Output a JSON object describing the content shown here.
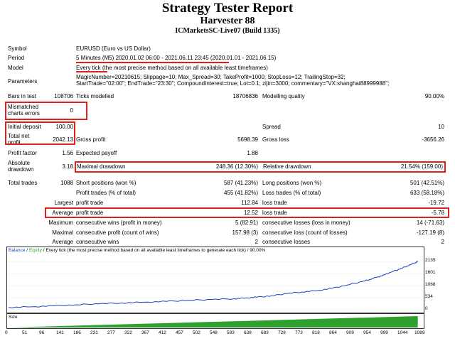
{
  "header": {
    "title": "Strategy Tester Report",
    "subtitle": "Harvester 88",
    "server": "ICMarketsSC-Live07 (Build 1335)"
  },
  "summary": {
    "symbol_label": "Symbol",
    "symbol_value": "EURUSD (Euro vs US Dollar)",
    "period_label": "Period",
    "period_value": "5 Minutes (M5) 2020.01.02 06:00 - 2021.06.11 23:45 (2020.01.01 - 2021.06.15)",
    "model_label": "Model",
    "model_value": "Every tick (the most precise method based on all available least timeframes)",
    "parameters_label": "Parameters",
    "parameters_line1": "MagicNumber=20210615; Slippage=10; Max_Spread=30; TakeProfit=1000; StopLoss=12; TrailingStop=32;",
    "parameters_line2": "StartTrade=\"02:00\"; EndTrade=\"23:30\"; CompoundInterest=true; Lot=0.1; zijin=3000; commentary=\"VX:shanghai88999988\";"
  },
  "stats": {
    "bars_label": "Bars in test",
    "bars_value": "108706",
    "ticks_label": "Ticks modelled",
    "ticks_value": "18706836",
    "quality_label": "Modelling quality",
    "quality_value": "90.00%",
    "mismatch_label_1": "Mismatched",
    "mismatch_label_2": "charts errors",
    "mismatch_value": "0",
    "deposit_label": "Initial deposit",
    "deposit_value": "100.00",
    "spread_label": "Spread",
    "spread_value": "10",
    "netprofit_label_1": "Total net",
    "netprofit_label_2": "profit",
    "netprofit_value": "2042.13",
    "grossprofit_label": "Gross profit",
    "grossprofit_value": "5698.39",
    "grossloss_label": "Gross loss",
    "grossloss_value": "-3656.26",
    "pf_label": "Profit factor",
    "pf_value": "1.56",
    "payoff_label": "Expected payoff",
    "payoff_value": "1.88",
    "absdd_label_1": "Absolute",
    "absdd_label_2": "drawdown",
    "absdd_value": "3.18",
    "maxdd_label": "Maximal drawdown",
    "maxdd_value": "248.36 (12.30%)",
    "reldd_label": "Relative drawdown",
    "reldd_value": "21.54% (159.00)",
    "trades_label": "Total trades",
    "trades_value": "1088",
    "short_label": "Short positions (won %)",
    "short_value": "587 (41.23%)",
    "long_label": "Long positions (won %)",
    "long_value": "501 (42.51%)",
    "pt_label": "Profit trades (% of total)",
    "pt_value": "455 (41.82%)",
    "lt_label": "Loss trades (% of total)",
    "lt_value": "633 (58.18%)",
    "largest_label": "Largest",
    "largest_pt_label": "profit trade",
    "largest_pt_value": "112.84",
    "largest_lt_label": "loss trade",
    "largest_lt_value": "-19.72",
    "average_label": "Average",
    "average_pt_label": "profit trade",
    "average_pt_value": "12.52",
    "average_lt_label": "loss trade",
    "average_lt_value": "-5.78",
    "maximum_label": "Maximum",
    "max_cw_label": "consecutive wins (profit in money)",
    "max_cw_value": "5 (82.91)",
    "max_cl_label": "consecutive losses (loss in money)",
    "max_cl_value": "14 (-71.63)",
    "maximal_label": "Maximal",
    "mxl_cp_label": "consecutive profit (count of wins)",
    "mxl_cp_value": "157.98 (3)",
    "mxl_cl_label": "consecutive loss (count of losses)",
    "mxl_cl_value": "-127.19 (8)",
    "avgc_label": "Average",
    "avg_cw_label": "consecutive wins",
    "avg_cw_value": "2",
    "avg_cl_label": "consecutive losses",
    "avg_cl_value": "2"
  },
  "chart_legend": {
    "balance": "Balance",
    "sep": " / ",
    "equity": "Equity",
    "rest": " / Every tick (the most precise method based on all available least timeframes to generate each tick) / 90.00%"
  },
  "colors": {
    "balance": "#1f3fbf",
    "equity": "#2ea02e",
    "highlight": "#e0201a"
  },
  "chart_data": {
    "type": "line",
    "title": "",
    "xlabel": "",
    "ylabel": "",
    "y_ticks": [
      "2135",
      "1601",
      "1068",
      "534",
      "0"
    ],
    "x_ticks": [
      "0",
      "51",
      "96",
      "141",
      "186",
      "231",
      "277",
      "322",
      "367",
      "412",
      "457",
      "502",
      "548",
      "593",
      "638",
      "683",
      "728",
      "773",
      "818",
      "864",
      "909",
      "954",
      "999",
      "1044",
      "1089"
    ],
    "volume_label": "Size",
    "ylim": [
      0,
      2400
    ],
    "xlim": [
      0,
      1100
    ],
    "series": [
      {
        "name": "Balance",
        "x": [
          0,
          60,
          120,
          180,
          240,
          300,
          360,
          420,
          480,
          540,
          600,
          630,
          660,
          700,
          740,
          780,
          820,
          860,
          900,
          940,
          960,
          980,
          1000,
          1020,
          1040,
          1060,
          1080,
          1088
        ],
        "y": [
          100,
          130,
          175,
          220,
          265,
          300,
          335,
          370,
          420,
          455,
          490,
          520,
          560,
          620,
          720,
          790,
          850,
          950,
          1100,
          1250,
          1350,
          1450,
          1550,
          1700,
          1800,
          1950,
          2080,
          2142
        ]
      }
    ],
    "volume": {
      "start": 0,
      "end": 1088
    }
  }
}
